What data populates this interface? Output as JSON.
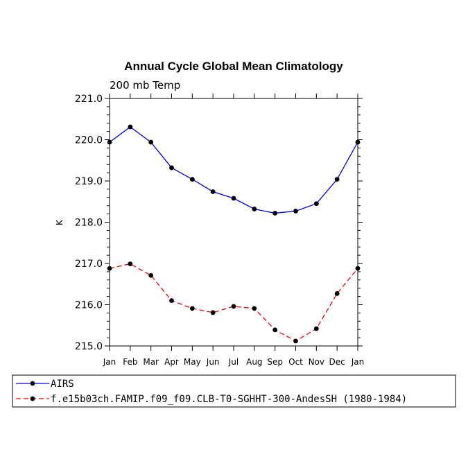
{
  "chart_data": {
    "type": "line",
    "title": "Annual Cycle Global Mean Climatology",
    "subtitle": "200 mb Temp",
    "xlabel": "",
    "ylabel": "K",
    "categories": [
      "Jan",
      "Feb",
      "Mar",
      "Apr",
      "May",
      "Jun",
      "Jul",
      "Aug",
      "Sep",
      "Oct",
      "Nov",
      "Dec",
      "Jan"
    ],
    "ylim": [
      215.0,
      221.0
    ],
    "yticks": [
      "215.0",
      "216.0",
      "217.0",
      "218.0",
      "219.0",
      "220.0",
      "221.0"
    ],
    "series": [
      {
        "name": "AIRS",
        "color": "#0000ff",
        "dash": "solid",
        "values": [
          219.94,
          220.31,
          219.94,
          219.32,
          219.04,
          218.74,
          218.58,
          218.32,
          218.22,
          218.27,
          218.45,
          219.04,
          219.94
        ]
      },
      {
        "name": "f.e15b03ch.FAMIP.f09_f09.CLB-T0-SGHHT-300-AndesSH (1980-1984)",
        "color": "#ff0000",
        "dash": "dashed",
        "values": [
          216.88,
          216.99,
          216.71,
          216.1,
          215.91,
          215.81,
          215.96,
          215.91,
          215.39,
          215.12,
          215.42,
          216.27,
          216.88
        ]
      }
    ],
    "legend_position": "bottom"
  }
}
